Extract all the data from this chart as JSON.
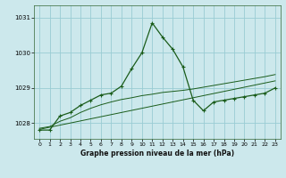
{
  "title": "Graphe pression niveau de la mer (hPa)",
  "bg_color": "#cce8ec",
  "grid_color": "#99ccd4",
  "line_color": "#1a5c1a",
  "xlim": [
    -0.5,
    23.5
  ],
  "ylim": [
    1027.55,
    1031.35
  ],
  "yticks": [
    1028,
    1029,
    1030,
    1031
  ],
  "xticks": [
    0,
    1,
    2,
    3,
    4,
    5,
    6,
    7,
    8,
    9,
    10,
    11,
    12,
    13,
    14,
    15,
    16,
    17,
    18,
    19,
    20,
    21,
    22,
    23
  ],
  "hours": [
    0,
    1,
    2,
    3,
    4,
    5,
    6,
    7,
    8,
    9,
    10,
    11,
    12,
    13,
    14,
    15,
    16,
    17,
    18,
    19,
    20,
    21,
    22,
    23
  ],
  "pressure_main": [
    1027.8,
    1027.8,
    1028.2,
    1028.3,
    1028.5,
    1028.65,
    1028.8,
    1028.85,
    1029.05,
    1029.55,
    1030.0,
    1030.85,
    1030.45,
    1030.1,
    1029.6,
    1028.65,
    1028.35,
    1028.6,
    1028.65,
    1028.7,
    1028.75,
    1028.8,
    1028.85,
    1029.0
  ],
  "pressure_smooth": [
    1027.85,
    1027.9,
    1028.05,
    1028.15,
    1028.3,
    1028.42,
    1028.52,
    1028.6,
    1028.67,
    1028.72,
    1028.78,
    1028.82,
    1028.87,
    1028.9,
    1028.93,
    1028.97,
    1029.02,
    1029.07,
    1029.12,
    1029.17,
    1029.22,
    1029.27,
    1029.32,
    1029.38
  ],
  "pressure_trend": [
    1027.82,
    1027.88,
    1027.94,
    1028.0,
    1028.06,
    1028.12,
    1028.18,
    1028.24,
    1028.3,
    1028.36,
    1028.42,
    1028.48,
    1028.54,
    1028.6,
    1028.66,
    1028.72,
    1028.78,
    1028.84,
    1028.9,
    1028.96,
    1029.02,
    1029.08,
    1029.14,
    1029.2
  ]
}
